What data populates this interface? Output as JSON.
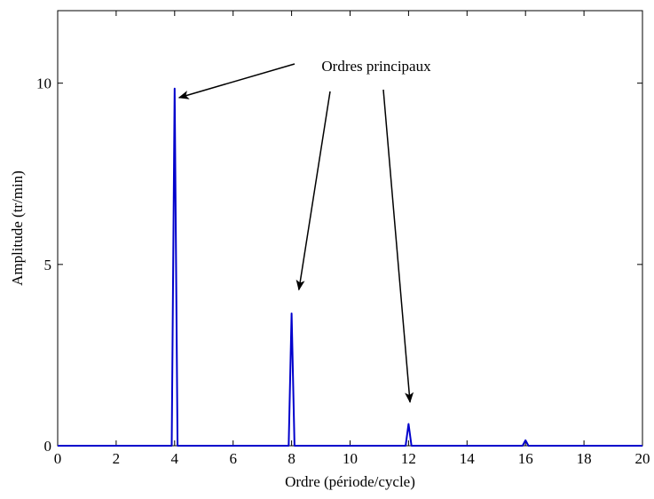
{
  "chart_data": {
    "type": "line",
    "title": "",
    "xlabel": "Ordre (période/cycle)",
    "ylabel": "Amplitude (tr/min)",
    "xlim": [
      0,
      20
    ],
    "ylim": [
      0,
      12
    ],
    "x_ticks": [
      0,
      2,
      4,
      6,
      8,
      10,
      12,
      14,
      16,
      18,
      20
    ],
    "y_ticks": [
      0,
      5,
      10
    ],
    "grid": false,
    "series": [
      {
        "color": "#0000cc",
        "x": [
          0,
          3.9,
          4.0,
          4.1,
          7.9,
          8.0,
          8.1,
          11.9,
          12.0,
          12.1,
          15.9,
          16.0,
          16.1,
          20
        ],
        "y": [
          0,
          0,
          9.85,
          0,
          0,
          3.65,
          0,
          0,
          0.6,
          0,
          0,
          0.15,
          0,
          0
        ]
      }
    ],
    "annotations": [
      {
        "text": "Ordres principaux",
        "arrows_to": [
          {
            "x": 4.15,
            "y": 9.6
          },
          {
            "x": 8.25,
            "y": 4.3
          },
          {
            "x": 12.05,
            "y": 1.2
          }
        ]
      }
    ]
  }
}
